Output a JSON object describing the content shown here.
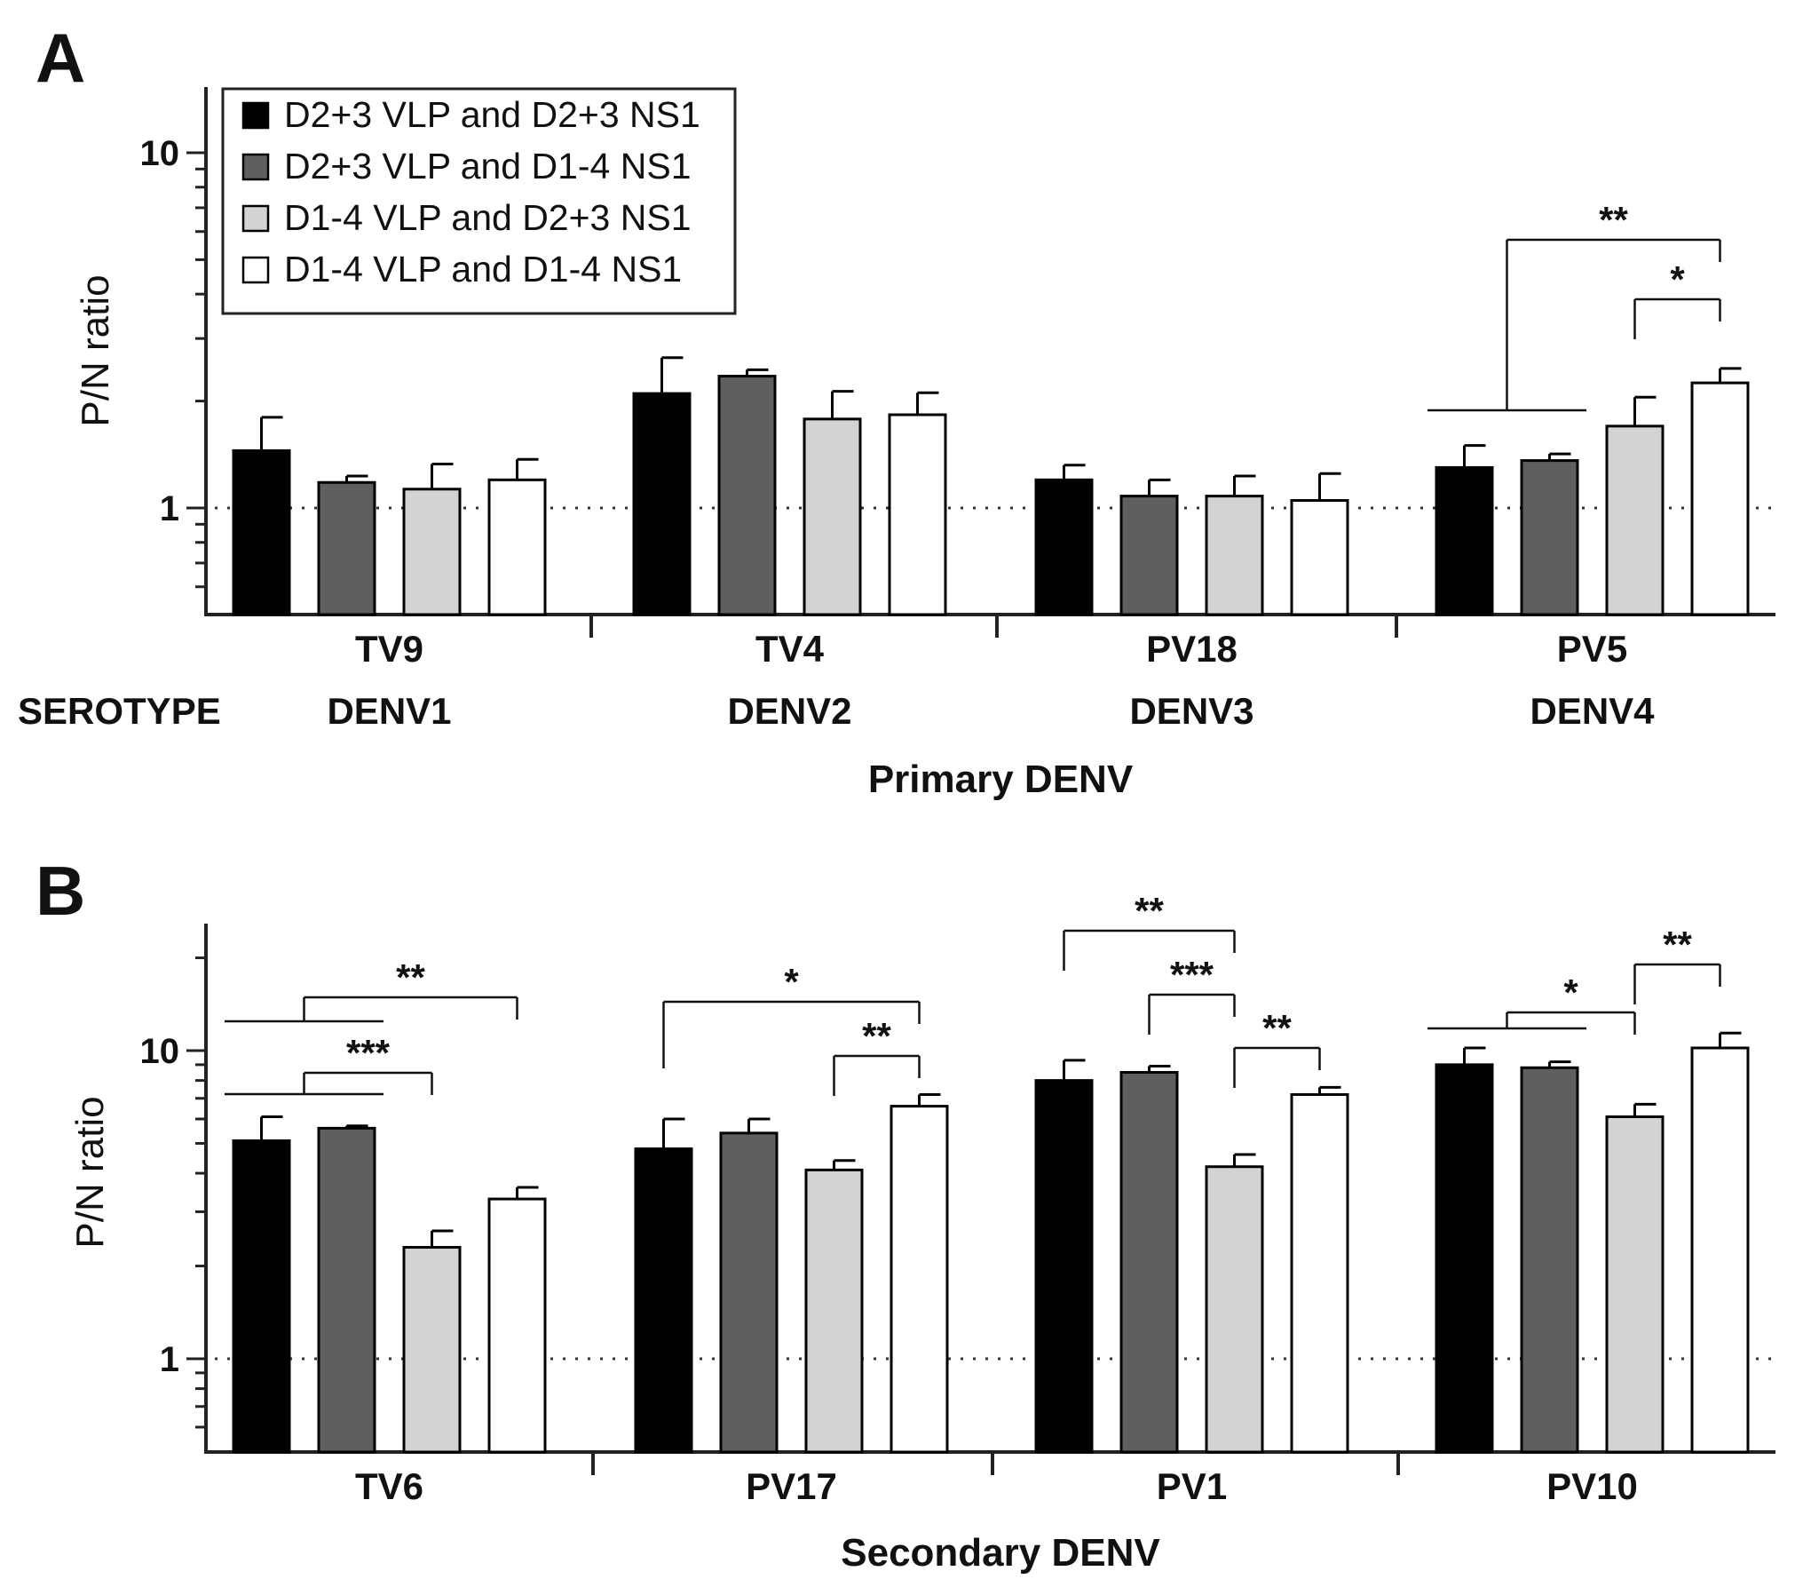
{
  "chart_data": [
    {
      "panel": "A",
      "type": "bar",
      "yscale": "log",
      "ylim": [
        0.55,
        15
      ],
      "ylabel": "P/N ratio",
      "yticks": [
        "10",
        "1"
      ],
      "xlabel": "Primary DENV",
      "row_label": "SEROTYPE",
      "reference_line": 1,
      "categories": [
        "TV9",
        "TV4",
        "PV18",
        "PV5"
      ],
      "serotypes": [
        "DENV1",
        "DENV2",
        "DENV3",
        "DENV4"
      ],
      "series": [
        {
          "name": "D2+3 VLP and D2+3 NS1",
          "color": "#000000",
          "values": [
            1.45,
            2.1,
            1.2,
            1.3
          ],
          "errors": [
            0.35,
            0.55,
            0.12,
            0.2
          ]
        },
        {
          "name": "D2+3 VLP and  D1-4 NS1",
          "color": "#5f5f5f",
          "values": [
            1.18,
            2.35,
            1.08,
            1.36
          ],
          "errors": [
            0.05,
            0.1,
            0.12,
            0.06
          ]
        },
        {
          "name": "D1-4  VLP and D2+3 NS1",
          "color": "#d3d3d3",
          "values": [
            1.13,
            1.78,
            1.08,
            1.7
          ],
          "errors": [
            0.2,
            0.35,
            0.15,
            0.35
          ]
        },
        {
          "name": "D1-4  VLP and  D1-4 NS1",
          "color": "#ffffff",
          "values": [
            1.2,
            1.83,
            1.05,
            2.25
          ],
          "errors": [
            0.17,
            0.28,
            0.2,
            0.22
          ]
        }
      ],
      "annotations": [
        {
          "label": "**",
          "category": 3,
          "from": [
            0,
            1
          ],
          "to": 3
        },
        {
          "label": "*",
          "category": 3,
          "from": [
            2
          ],
          "to": 3
        }
      ]
    },
    {
      "panel": "B",
      "type": "bar",
      "yscale": "log",
      "ylim": [
        0.55,
        25
      ],
      "ylabel": "P/N ratio",
      "yticks": [
        "10",
        "1"
      ],
      "xlabel": "Secondary DENV",
      "reference_line": 1,
      "categories": [
        "TV6",
        "PV17",
        "PV1",
        "PV10"
      ],
      "series": [
        {
          "name": "D2+3 VLP and D2+3 NS1",
          "color": "#000000",
          "values": [
            5.1,
            4.8,
            8.0,
            9.0
          ],
          "errors": [
            1.0,
            1.2,
            1.3,
            1.2
          ]
        },
        {
          "name": "D2+3 VLP and  D1-4 NS1",
          "color": "#5f5f5f",
          "values": [
            5.6,
            5.4,
            8.5,
            8.8
          ],
          "errors": [
            0.1,
            0.6,
            0.4,
            0.4
          ]
        },
        {
          "name": "D1-4  VLP and D2+3 NS1",
          "color": "#d3d3d3",
          "values": [
            2.3,
            4.1,
            4.2,
            6.1
          ],
          "errors": [
            0.3,
            0.3,
            0.4,
            0.6
          ]
        },
        {
          "name": "D1-4  VLP and  D1-4 NS1",
          "color": "#ffffff",
          "values": [
            3.3,
            6.6,
            7.2,
            10.2
          ],
          "errors": [
            0.3,
            0.6,
            0.4,
            1.2
          ]
        }
      ],
      "annotations": [
        {
          "label": "**",
          "category": 0,
          "from": [
            0,
            1
          ],
          "to": 3
        },
        {
          "label": "***",
          "category": 0,
          "from": [
            0,
            1
          ],
          "to": 2
        },
        {
          "label": "*",
          "category": 1,
          "from": [
            0
          ],
          "to": 3
        },
        {
          "label": "**",
          "category": 1,
          "from": [
            2
          ],
          "to": 3
        },
        {
          "label": "**",
          "category": 2,
          "from": [
            0
          ],
          "to": 2
        },
        {
          "label": "***",
          "category": 2,
          "from": [
            1
          ],
          "to": 2
        },
        {
          "label": "**",
          "category": 2,
          "from": [
            2
          ],
          "to": 3
        },
        {
          "label": "*",
          "category": 3,
          "from": [
            0,
            1
          ],
          "to": 2
        },
        {
          "label": "**",
          "category": 3,
          "from": [
            2
          ],
          "to": 3
        }
      ]
    }
  ]
}
